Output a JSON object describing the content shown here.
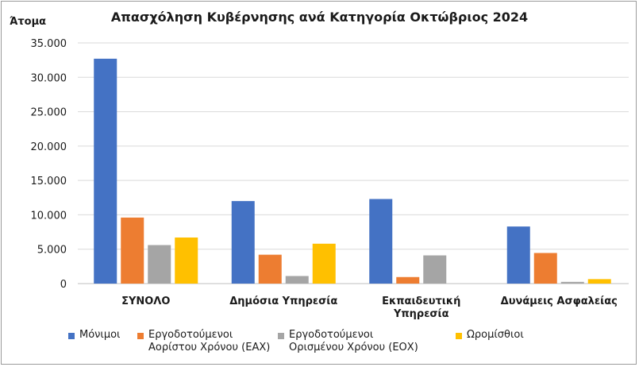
{
  "chart_data": {
    "type": "bar",
    "title": "Απασχόληση Κυβέρνησης ανά Κατηγορία Οκτώβριος 2024",
    "ylabel": "Άτομα",
    "xlabel": "",
    "ylim": [
      0,
      35000
    ],
    "yticks": [
      "0",
      "5.000",
      "10.000",
      "15.000",
      "20.000",
      "25.000",
      "30.000",
      "35.000"
    ],
    "ytick_values": [
      0,
      5000,
      10000,
      15000,
      20000,
      25000,
      30000,
      35000
    ],
    "grid": true,
    "legend_position": "bottom",
    "categories": [
      "ΣΥΝΟΛΟ",
      "Δημόσια Υπηρεσία",
      "Εκπαιδευτική\nΥπηρεσία",
      "Δυνάμεις Ασφαλείας"
    ],
    "series": [
      {
        "name": "Μόνιμοι",
        "color": "#4472C4",
        "values": [
          32700,
          12000,
          12300,
          8300
        ]
      },
      {
        "name": "Εργοδοτούμενοι\nΑορίστου Χρόνου (ΕΑΧ)",
        "color": "#ED7D31",
        "values": [
          9600,
          4200,
          950,
          4450
        ]
      },
      {
        "name": "Εργοδοτούμενοι\nΟρισμένου Χρόνου (ΕΟΧ)",
        "color": "#A5A5A5",
        "values": [
          5600,
          1100,
          4100,
          250
        ]
      },
      {
        "name": "Ωρομίσθιοι",
        "color": "#FFC000",
        "values": [
          6700,
          5800,
          0,
          650
        ]
      }
    ]
  }
}
